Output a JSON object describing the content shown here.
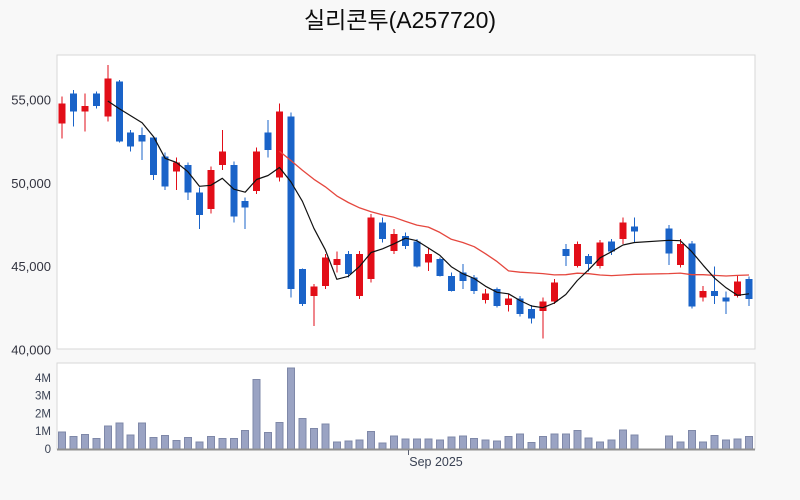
{
  "title": "실리콘투(A257720)",
  "colors": {
    "up_candle": "#e20e18",
    "down_candle": "#1a63c8",
    "ma_short": "#111111",
    "ma_long": "#e5473e",
    "volume_fill": "#9aa3c3",
    "volume_stroke": "#7f88a8",
    "panel_border": "#d7d7d7",
    "baseline": "#909090",
    "background": "#f8f8f8"
  },
  "chart_data": {
    "type": "candlestick_with_volume",
    "title": "실리콘투(A257720)",
    "grid": false,
    "x_axis": {
      "tick_label": "Sep 2025"
    },
    "price_axis": {
      "side": "left",
      "range": [
        40060,
        57700
      ],
      "ticks": [
        {
          "v": 55000,
          "label": "55,000"
        },
        {
          "v": 50000,
          "label": "50,000"
        },
        {
          "v": 45000,
          "label": "45,000"
        },
        {
          "v": 40000,
          "label": "40,000"
        }
      ]
    },
    "volume_axis": {
      "side": "left",
      "unit": "shares",
      "range_millions": [
        0,
        4.83
      ],
      "ticks": [
        {
          "v": 4,
          "label": "4M"
        },
        {
          "v": 3,
          "label": "3M"
        },
        {
          "v": 2,
          "label": "2M"
        },
        {
          "v": 1,
          "label": "1M"
        },
        {
          "v": 0,
          "label": "0"
        }
      ]
    },
    "overlays": [
      {
        "name": "ma-short",
        "type": "sma",
        "period": 5,
        "color": "#111111"
      },
      {
        "name": "ma-long",
        "type": "sma",
        "period": 20,
        "color": "#e5473e"
      }
    ],
    "gap": {
      "after_index": 50,
      "skip_slots": 2,
      "note": "no-trading holiday gap"
    },
    "candle_format": [
      "open",
      "high",
      "low",
      "close",
      "volume_millions"
    ],
    "candles": [
      [
        53600,
        55200,
        52700,
        54800,
        0.95
      ],
      [
        55400,
        55600,
        53400,
        54300,
        0.7
      ],
      [
        54300,
        55400,
        53100,
        54650,
        0.82
      ],
      [
        55400,
        55500,
        54500,
        54650,
        0.58
      ],
      [
        54000,
        57100,
        53700,
        56300,
        1.28
      ],
      [
        56100,
        56200,
        52450,
        52500,
        1.45
      ],
      [
        53050,
        53200,
        51900,
        52200,
        0.8
      ],
      [
        52900,
        53350,
        51400,
        52500,
        1.45
      ],
      [
        52750,
        52750,
        50200,
        50500,
        0.65
      ],
      [
        51600,
        51850,
        49600,
        49800,
        0.75
      ],
      [
        50700,
        51550,
        49600,
        51250,
        0.48
      ],
      [
        51100,
        51250,
        49000,
        49450,
        0.65
      ],
      [
        49450,
        49750,
        47250,
        48100,
        0.4
      ],
      [
        48450,
        51000,
        48200,
        50800,
        0.7
      ],
      [
        51100,
        53200,
        50800,
        51900,
        0.6
      ],
      [
        51100,
        51300,
        47650,
        48000,
        0.6
      ],
      [
        48950,
        49150,
        47250,
        48550,
        1.05
      ],
      [
        49550,
        52150,
        49350,
        51900,
        3.9
      ],
      [
        53050,
        53800,
        51550,
        52000,
        0.92
      ],
      [
        50350,
        54800,
        50100,
        54300,
        1.5
      ],
      [
        54000,
        54250,
        43150,
        43650,
        4.55
      ],
      [
        44850,
        44900,
        42650,
        42750,
        1.7
      ],
      [
        43250,
        43950,
        41450,
        43800,
        1.16
      ],
      [
        43850,
        45750,
        43650,
        45550,
        1.4
      ],
      [
        45100,
        45900,
        44650,
        45450,
        0.38
      ],
      [
        45750,
        45950,
        44350,
        44550,
        0.45
      ],
      [
        43250,
        45950,
        43050,
        45750,
        0.5
      ],
      [
        44250,
        48150,
        44050,
        47950,
        0.97
      ],
      [
        47650,
        47950,
        46450,
        46650,
        0.35
      ],
      [
        45950,
        47250,
        45750,
        46950,
        0.73
      ],
      [
        46850,
        47050,
        46050,
        46250,
        0.56
      ],
      [
        46500,
        46650,
        44950,
        45000,
        0.56
      ],
      [
        45250,
        46150,
        44750,
        45750,
        0.56
      ],
      [
        45450,
        45550,
        44400,
        44450,
        0.5
      ],
      [
        44450,
        44650,
        43500,
        43550,
        0.66
      ],
      [
        44650,
        45150,
        43650,
        44150,
        0.73
      ],
      [
        44350,
        44500,
        43350,
        43550,
        0.6
      ],
      [
        43000,
        43650,
        42800,
        43400,
        0.5
      ],
      [
        43650,
        43750,
        42550,
        42650,
        0.45
      ],
      [
        42700,
        43350,
        42300,
        43100,
        0.69
      ],
      [
        43100,
        43250,
        42000,
        42150,
        0.84
      ],
      [
        42450,
        42700,
        41600,
        41900,
        0.36
      ],
      [
        42350,
        43150,
        40700,
        42900,
        0.7
      ],
      [
        42900,
        44250,
        42750,
        44050,
        0.84
      ],
      [
        46050,
        46350,
        45050,
        45650,
        0.84
      ],
      [
        45050,
        46500,
        44950,
        46350,
        1.03
      ],
      [
        45650,
        45750,
        44700,
        45150,
        0.63
      ],
      [
        45050,
        46600,
        44900,
        46450,
        0.4
      ],
      [
        46500,
        46650,
        45700,
        45900,
        0.5
      ],
      [
        46650,
        47950,
        46350,
        47650,
        1.08
      ],
      [
        47400,
        47950,
        46450,
        47100,
        0.8
      ],
      [
        47300,
        47500,
        45100,
        45800,
        0.73
      ],
      [
        45100,
        46650,
        44950,
        46350,
        0.4
      ],
      [
        46400,
        46550,
        42500,
        42600,
        1.05
      ],
      [
        43150,
        43850,
        42900,
        43550,
        0.38
      ],
      [
        43550,
        45000,
        42750,
        43250,
        0.75
      ],
      [
        43150,
        43500,
        42150,
        42900,
        0.5
      ],
      [
        43250,
        44450,
        43150,
        44100,
        0.56
      ],
      [
        44250,
        44400,
        42650,
        43050,
        0.69
      ]
    ]
  }
}
